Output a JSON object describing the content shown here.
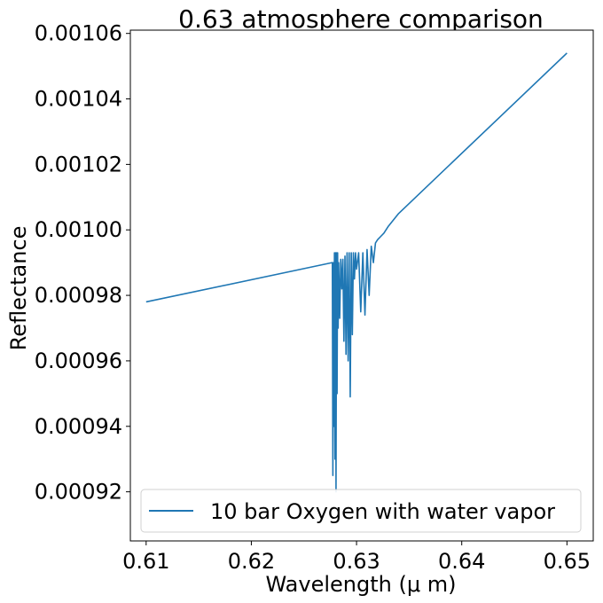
{
  "chart_data": {
    "type": "line",
    "title": "0.63 atmosphere comparison",
    "xlabel": "Wavelength (μ m)",
    "ylabel": "Reflectance",
    "xlim": [
      0.6085,
      0.6525
    ],
    "ylim": [
      0.000905,
      0.001061
    ],
    "x_ticks": [
      0.61,
      0.62,
      0.63,
      0.64,
      0.65
    ],
    "x_tick_labels": [
      "0.61",
      "0.62",
      "0.63",
      "0.64",
      "0.65"
    ],
    "y_ticks": [
      0.00092,
      0.00094,
      0.00096,
      0.00098,
      0.001,
      0.00102,
      0.00104,
      0.00106
    ],
    "y_tick_labels": [
      "0.00092",
      "0.00094",
      "0.00096",
      "0.00098",
      "0.00100",
      "0.00102",
      "0.00104",
      "0.00106"
    ],
    "grid": false,
    "legend_position": "lower-right",
    "series": [
      {
        "name": "10 bar Oxygen with water vapor",
        "color": "#1f77b4",
        "x": [
          0.61,
          0.6277,
          0.62775,
          0.6278,
          0.62785,
          0.6279,
          0.62795,
          0.628,
          0.62805,
          0.6281,
          0.62815,
          0.6282,
          0.62825,
          0.6283,
          0.6284,
          0.6285,
          0.6286,
          0.6287,
          0.6288,
          0.6289,
          0.629,
          0.6291,
          0.6292,
          0.6293,
          0.6294,
          0.6295,
          0.6296,
          0.6297,
          0.6298,
          0.6299,
          0.63,
          0.6302,
          0.6304,
          0.6306,
          0.6308,
          0.631,
          0.6312,
          0.6314,
          0.6316,
          0.6318,
          0.632,
          0.6323,
          0.6326,
          0.633,
          0.6335,
          0.634,
          0.65
        ],
        "y": [
          0.000978,
          0.00099,
          0.000925,
          0.00099,
          0.00094,
          0.000993,
          0.00093,
          0.000993,
          0.00092,
          0.000993,
          0.00095,
          0.000993,
          0.00097,
          0.00099,
          0.000973,
          0.000991,
          0.000982,
          0.000991,
          0.000966,
          0.000992,
          0.000962,
          0.000993,
          0.00096,
          0.000993,
          0.000949,
          0.000993,
          0.000968,
          0.000993,
          0.000985,
          0.000993,
          0.000988,
          0.000993,
          0.000975,
          0.000993,
          0.000974,
          0.000994,
          0.00098,
          0.000995,
          0.00099,
          0.000996,
          0.000997,
          0.000998,
          0.000999,
          0.001001,
          0.001003,
          0.001005,
          0.001054
        ]
      }
    ]
  }
}
